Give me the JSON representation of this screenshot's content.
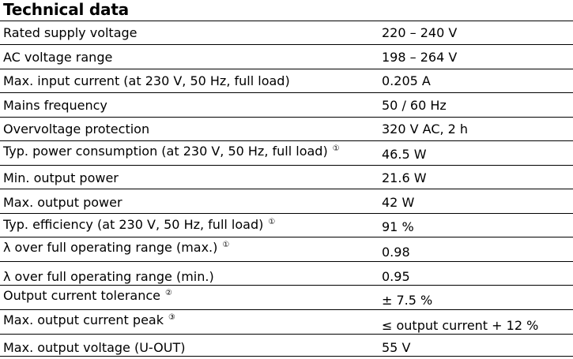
{
  "title": "Technical data",
  "rows": [
    {
      "label": "Rated supply voltage",
      "note": "",
      "value": "220 – 240 V"
    },
    {
      "label": "AC voltage range",
      "note": "",
      "value": "198 – 264 V"
    },
    {
      "label": "Max. input current (at 230 V, 50 Hz, full load)",
      "note": "",
      "value": "0.205 A"
    },
    {
      "label": "Mains frequency",
      "note": "",
      "value": "50 / 60 Hz"
    },
    {
      "label": "Overvoltage protection",
      "note": "",
      "value": "320 V AC, 2 h"
    },
    {
      "label": "Typ. power consumption (at 230 V, 50 Hz, full load)",
      "note": "①",
      "value": "46.5 W"
    },
    {
      "label": "Min. output power",
      "note": "",
      "value": "21.6 W"
    },
    {
      "label": "Max. output power",
      "note": "",
      "value": "42 W"
    },
    {
      "label": "Typ. efficiency (at 230 V, 50 Hz, full load)",
      "note": "①",
      "value": "91 %"
    },
    {
      "label": "λ over full operating range (max.)",
      "note": "①",
      "value": "0.98"
    },
    {
      "label": "λ over full operating range (min.)",
      "note": "",
      "value": "0.95"
    },
    {
      "label": "Output current tolerance",
      "note": "②",
      "value": "± 7.5 %"
    },
    {
      "label": "Max. output current peak",
      "note": "③",
      "value": "≤ output current + 12 %"
    },
    {
      "label": "Max. output voltage (U-OUT)",
      "note": "",
      "value": "55 V"
    }
  ]
}
